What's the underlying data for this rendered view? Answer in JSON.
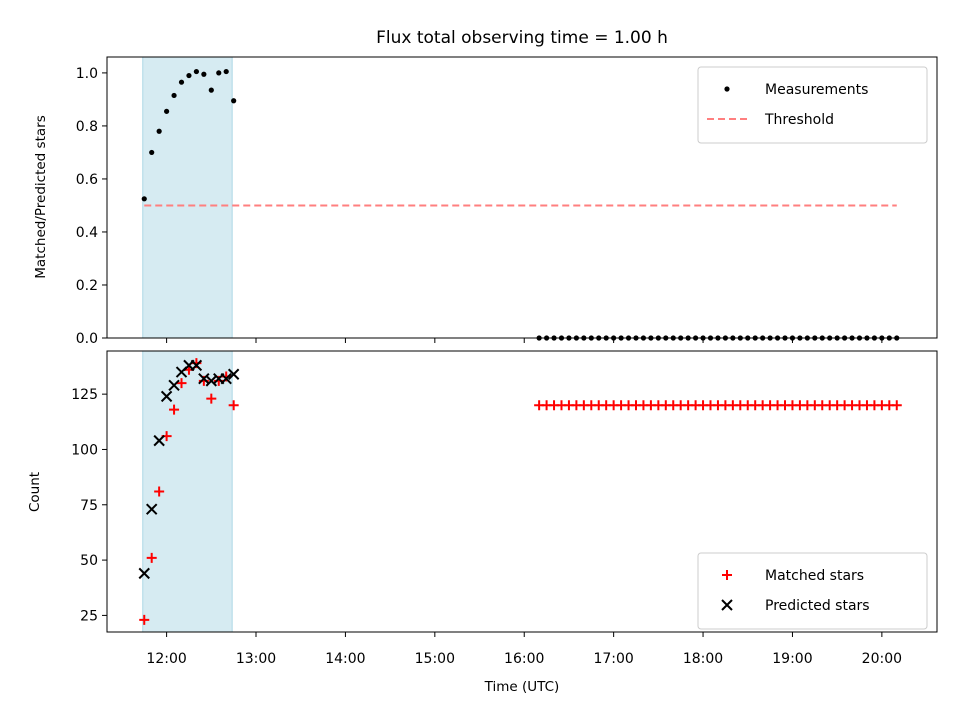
{
  "chart_data": {
    "title": "Flux total observing time = 1.00 h",
    "xlabel": "Time (UTC)",
    "x_ticks": [
      "12:00",
      "13:00",
      "14:00",
      "15:00",
      "16:00",
      "17:00",
      "18:00",
      "19:00",
      "20:00"
    ],
    "x_range": [
      "11:20",
      "20:37"
    ],
    "shaded_interval": {
      "start": "11:44",
      "end": "12:44",
      "color": "#add8e6"
    },
    "panels": [
      {
        "type": "scatter",
        "ylabel": "Matched/Predicted stars",
        "ylim": [
          0,
          1.06
        ],
        "y_ticks": [
          "0.0",
          "0.2",
          "0.4",
          "0.6",
          "0.8",
          "1.0"
        ],
        "legend": {
          "placement": "upper right"
        },
        "series": [
          {
            "name": "Measurements",
            "marker": "dot",
            "color": "#000000",
            "points": [
              [
                "11:45",
                0.525
              ],
              [
                "11:50",
                0.7
              ],
              [
                "11:55",
                0.78
              ],
              [
                "12:00",
                0.855
              ],
              [
                "12:05",
                0.915
              ],
              [
                "12:10",
                0.965
              ],
              [
                "12:15",
                0.99
              ],
              [
                "12:20",
                1.005
              ],
              [
                "12:25",
                0.995
              ],
              [
                "12:30",
                0.935
              ],
              [
                "12:35",
                1.0
              ],
              [
                "12:40",
                1.005
              ],
              [
                "12:45",
                0.895
              ],
              [
                "16:10",
                0
              ],
              [
                "16:15",
                0
              ],
              [
                "16:20",
                0
              ],
              [
                "16:25",
                0
              ],
              [
                "16:30",
                0
              ],
              [
                "16:35",
                0
              ],
              [
                "16:40",
                0
              ],
              [
                "16:45",
                0
              ],
              [
                "16:50",
                0
              ],
              [
                "16:55",
                0
              ],
              [
                "17:00",
                0
              ],
              [
                "17:05",
                0
              ],
              [
                "17:10",
                0
              ],
              [
                "17:15",
                0
              ],
              [
                "17:20",
                0
              ],
              [
                "17:25",
                0
              ],
              [
                "17:30",
                0
              ],
              [
                "17:35",
                0
              ],
              [
                "17:40",
                0
              ],
              [
                "17:45",
                0
              ],
              [
                "17:50",
                0
              ],
              [
                "17:55",
                0
              ],
              [
                "18:00",
                0
              ],
              [
                "18:05",
                0
              ],
              [
                "18:10",
                0
              ],
              [
                "18:15",
                0
              ],
              [
                "18:20",
                0
              ],
              [
                "18:25",
                0
              ],
              [
                "18:30",
                0
              ],
              [
                "18:35",
                0
              ],
              [
                "18:40",
                0
              ],
              [
                "18:45",
                0
              ],
              [
                "18:50",
                0
              ],
              [
                "18:55",
                0
              ],
              [
                "19:00",
                0
              ],
              [
                "19:05",
                0
              ],
              [
                "19:10",
                0
              ],
              [
                "19:15",
                0
              ],
              [
                "19:20",
                0
              ],
              [
                "19:25",
                0
              ],
              [
                "19:30",
                0
              ],
              [
                "19:35",
                0
              ],
              [
                "19:40",
                0
              ],
              [
                "19:45",
                0
              ],
              [
                "19:50",
                0
              ],
              [
                "19:55",
                0
              ],
              [
                "20:00",
                0
              ],
              [
                "20:05",
                0
              ],
              [
                "20:10",
                0
              ]
            ]
          },
          {
            "name": "Threshold",
            "type": "line",
            "style": "dashed",
            "color": "#ff7f7f",
            "points": [
              [
                "11:45",
                0.5
              ],
              [
                "20:10",
                0.5
              ]
            ]
          }
        ]
      },
      {
        "type": "scatter",
        "ylabel": "Count",
        "ylim": [
          17.5,
          144.5
        ],
        "y_ticks": [
          "25",
          "50",
          "75",
          "100",
          "125"
        ],
        "legend": {
          "placement": "lower right"
        },
        "series": [
          {
            "name": "Matched stars",
            "marker": "plus",
            "color": "#ff0000",
            "points": [
              [
                "11:45",
                23
              ],
              [
                "11:50",
                51
              ],
              [
                "11:55",
                81
              ],
              [
                "12:00",
                106
              ],
              [
                "12:05",
                118
              ],
              [
                "12:10",
                130
              ],
              [
                "12:15",
                136
              ],
              [
                "12:20",
                139
              ],
              [
                "12:25",
                131
              ],
              [
                "12:30",
                123
              ],
              [
                "12:35",
                131
              ],
              [
                "12:40",
                133
              ],
              [
                "12:45",
                120
              ],
              [
                "16:10",
                120
              ],
              [
                "16:15",
                120
              ],
              [
                "16:20",
                120
              ],
              [
                "16:25",
                120
              ],
              [
                "16:30",
                120
              ],
              [
                "16:35",
                120
              ],
              [
                "16:40",
                120
              ],
              [
                "16:45",
                120
              ],
              [
                "16:50",
                120
              ],
              [
                "16:55",
                120
              ],
              [
                "17:00",
                120
              ],
              [
                "17:05",
                120
              ],
              [
                "17:10",
                120
              ],
              [
                "17:15",
                120
              ],
              [
                "17:20",
                120
              ],
              [
                "17:25",
                120
              ],
              [
                "17:30",
                120
              ],
              [
                "17:35",
                120
              ],
              [
                "17:40",
                120
              ],
              [
                "17:45",
                120
              ],
              [
                "17:50",
                120
              ],
              [
                "17:55",
                120
              ],
              [
                "18:00",
                120
              ],
              [
                "18:05",
                120
              ],
              [
                "18:10",
                120
              ],
              [
                "18:15",
                120
              ],
              [
                "18:20",
                120
              ],
              [
                "18:25",
                120
              ],
              [
                "18:30",
                120
              ],
              [
                "18:35",
                120
              ],
              [
                "18:40",
                120
              ],
              [
                "18:45",
                120
              ],
              [
                "18:50",
                120
              ],
              [
                "18:55",
                120
              ],
              [
                "19:00",
                120
              ],
              [
                "19:05",
                120
              ],
              [
                "19:10",
                120
              ],
              [
                "19:15",
                120
              ],
              [
                "19:20",
                120
              ],
              [
                "19:25",
                120
              ],
              [
                "19:30",
                120
              ],
              [
                "19:35",
                120
              ],
              [
                "19:40",
                120
              ],
              [
                "19:45",
                120
              ],
              [
                "19:50",
                120
              ],
              [
                "19:55",
                120
              ],
              [
                "20:00",
                120
              ],
              [
                "20:05",
                120
              ],
              [
                "20:10",
                120
              ]
            ]
          },
          {
            "name": "Predicted stars",
            "marker": "x",
            "color": "#000000",
            "points": [
              [
                "11:45",
                44
              ],
              [
                "11:50",
                73
              ],
              [
                "11:55",
                104
              ],
              [
                "12:00",
                124
              ],
              [
                "12:05",
                129
              ],
              [
                "12:10",
                135
              ],
              [
                "12:15",
                138
              ],
              [
                "12:20",
                138
              ],
              [
                "12:25",
                132
              ],
              [
                "12:30",
                131
              ],
              [
                "12:35",
                132
              ],
              [
                "12:40",
                132
              ],
              [
                "12:45",
                134
              ]
            ]
          }
        ]
      }
    ]
  }
}
